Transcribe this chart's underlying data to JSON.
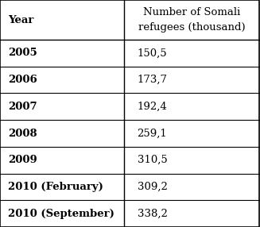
{
  "col1_header": "Year",
  "col2_header": "Number of Somali\nrefugees (thousand)",
  "rows": [
    [
      "2005",
      "150,5"
    ],
    [
      "2006",
      "173,7"
    ],
    [
      "2007",
      "192,4"
    ],
    [
      "2008",
      "259,1"
    ],
    [
      "2009",
      "310,5"
    ],
    [
      "2010 (February)",
      "309,2"
    ],
    [
      "2010 (September)",
      "338,2"
    ]
  ],
  "background_color": "#ffffff",
  "border_color": "#000000",
  "header_font_size": 9.5,
  "cell_font_size": 9.5,
  "col_split": 0.48
}
